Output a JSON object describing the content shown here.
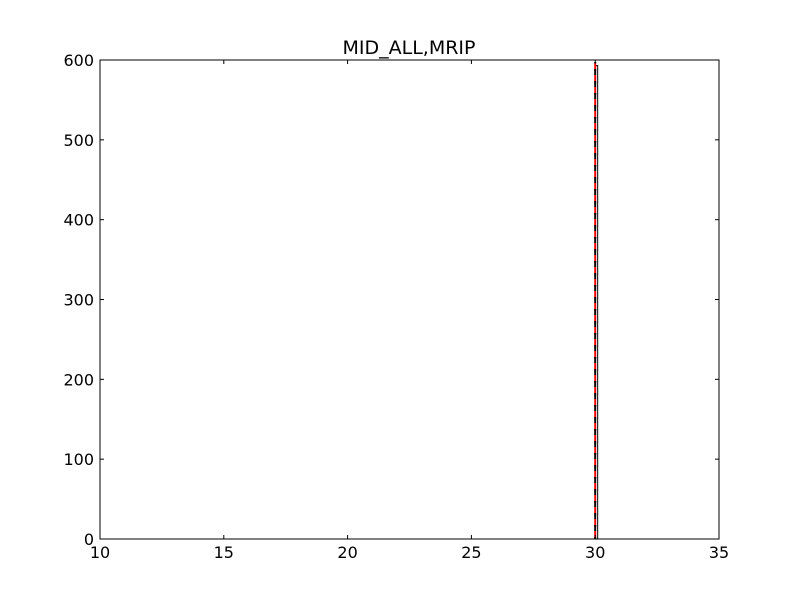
{
  "chart_data": {
    "type": "histogram",
    "title": "MID_ALL,MRIP",
    "xlabel": "",
    "ylabel": "",
    "xlim": [
      10,
      35
    ],
    "ylim": [
      0,
      600
    ],
    "x_ticks": [
      10,
      15,
      20,
      25,
      30,
      35
    ],
    "y_ticks": [
      0,
      100,
      200,
      300,
      400,
      500,
      600
    ],
    "grid": false,
    "legend": "none",
    "bars": [
      {
        "x_start": 29.6,
        "x_end": 30.0,
        "value": 0
      },
      {
        "x_start": 30.0,
        "x_end": 30.1,
        "value": 593
      },
      {
        "x_start": 30.1,
        "x_end": 30.5,
        "value": 0
      }
    ],
    "reference_lines": [
      {
        "x": 30.0,
        "color": "#ff0000",
        "style": "dashed"
      },
      {
        "x": 30.0,
        "color": "#000000",
        "style": "dashed"
      }
    ],
    "colors": {
      "axes": "#000000",
      "bar_edge": "#000000",
      "background": "#ffffff"
    }
  }
}
